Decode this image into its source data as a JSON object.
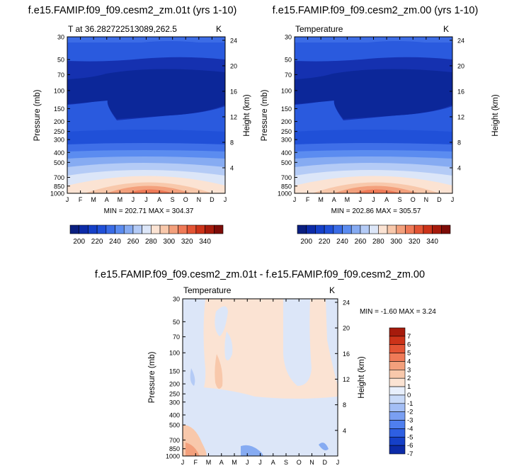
{
  "colors": {
    "scale_temp": [
      "#0a1f80",
      "#0c2ba8",
      "#1540c8",
      "#2050d8",
      "#3a6ce6",
      "#5b8cf0",
      "#86abf2",
      "#b4cbf6",
      "#dce6f8",
      "#fbe3d3",
      "#f8c8ab",
      "#f3a07c",
      "#ef7a57",
      "#e35434",
      "#cc3319",
      "#a61b0c",
      "#7d0c08"
    ],
    "scale_diff": [
      "#0c2ba8",
      "#1540c8",
      "#2e5fe2",
      "#4f7fee",
      "#7a9ff2",
      "#a3bef5",
      "#c9daf8",
      "#e8effc",
      "#fbe3d3",
      "#f8c8ab",
      "#f3a07c",
      "#ef7a57",
      "#e35434",
      "#cc3319",
      "#a61b0c"
    ]
  },
  "months": [
    "J",
    "F",
    "M",
    "A",
    "M",
    "J",
    "J",
    "A",
    "S",
    "O",
    "N",
    "D",
    "J"
  ],
  "pressure_ticks": [
    "30",
    "50",
    "70",
    "100",
    "150",
    "200",
    "250",
    "300",
    "400",
    "500",
    "700",
    "850",
    "1000"
  ],
  "panels": [
    {
      "title": "f.e15.FAMIP.f09_f09.cesm2_zm.01t (yrs 1-10)",
      "left_label": "T at 36.282722513089,262.5",
      "unit": "K",
      "ylabel": "Pressure (mb)",
      "y2label": "Height (km)",
      "height_ticks": [
        "24",
        "20",
        "16",
        "12",
        "8",
        "4"
      ],
      "stats": "MIN = 202.71 MAX = 304.37"
    },
    {
      "title": "f.e15.FAMIP.f09_f09.cesm2_zm.00 (yrs 1-10)",
      "left_label": "Temperature",
      "unit": "K",
      "ylabel": "Pressure (mb)",
      "y2label": "Height (km)",
      "height_ticks": [
        "24",
        "20",
        "16",
        "12",
        "8",
        "4"
      ],
      "stats": "MIN = 202.86 MAX = 305.57"
    },
    {
      "title": "f.e15.FAMIP.f09_f09.cesm2_zm.01t - f.e15.FAMIP.f09_f09.cesm2_zm.00",
      "left_label": "Temperature",
      "unit": "K",
      "ylabel": "Pressure (mb)",
      "y2label": "Height (km)",
      "height_ticks": [
        "24",
        "20",
        "16",
        "12",
        "8",
        "4"
      ],
      "stats": "MIN =  -1.60 MAX =   3.24"
    }
  ],
  "colorbar_temp": {
    "labels": [
      "200",
      "220",
      "240",
      "260",
      "280",
      "300",
      "320",
      "340"
    ]
  },
  "colorbar_diff": {
    "labels": [
      "7",
      "6",
      "5",
      "4",
      "3",
      "2",
      "1",
      "0",
      "-1",
      "-2",
      "-3",
      "-4",
      "-5",
      "-6",
      "-7"
    ]
  },
  "chart_data": [
    {
      "type": "heatmap",
      "title": "f.e15.FAMIP.f09_f09.cesm2_zm.01t (yrs 1-10)",
      "xlabel": "",
      "ylabel": "Pressure (mb)",
      "y2label": "Height (km)",
      "x": [
        "J",
        "F",
        "M",
        "A",
        "M",
        "J",
        "J",
        "A",
        "S",
        "O",
        "N",
        "D",
        "J"
      ],
      "y": [
        30,
        50,
        70,
        100,
        150,
        200,
        250,
        300,
        400,
        500,
        700,
        850,
        1000
      ],
      "z_range": [
        202.71,
        304.37
      ],
      "unit": "K"
    },
    {
      "type": "heatmap",
      "title": "f.e15.FAMIP.f09_f09.cesm2_zm.00 (yrs 1-10)",
      "xlabel": "",
      "ylabel": "Pressure (mb)",
      "y2label": "Height (km)",
      "x": [
        "J",
        "F",
        "M",
        "A",
        "M",
        "J",
        "J",
        "A",
        "S",
        "O",
        "N",
        "D",
        "J"
      ],
      "y": [
        30,
        50,
        70,
        100,
        150,
        200,
        250,
        300,
        400,
        500,
        700,
        850,
        1000
      ],
      "z_range": [
        202.86,
        305.57
      ],
      "unit": "K"
    },
    {
      "type": "heatmap",
      "title": "f.e15.FAMIP.f09_f09.cesm2_zm.01t - f.e15.FAMIP.f09_f09.cesm2_zm.00",
      "xlabel": "",
      "ylabel": "Pressure (mb)",
      "y2label": "Height (km)",
      "x": [
        "J",
        "F",
        "M",
        "A",
        "M",
        "J",
        "J",
        "A",
        "S",
        "O",
        "N",
        "D",
        "J"
      ],
      "y": [
        30,
        50,
        70,
        100,
        150,
        200,
        250,
        300,
        400,
        500,
        700,
        850,
        1000
      ],
      "z_range": [
        -1.6,
        3.24
      ],
      "unit": "K"
    }
  ]
}
